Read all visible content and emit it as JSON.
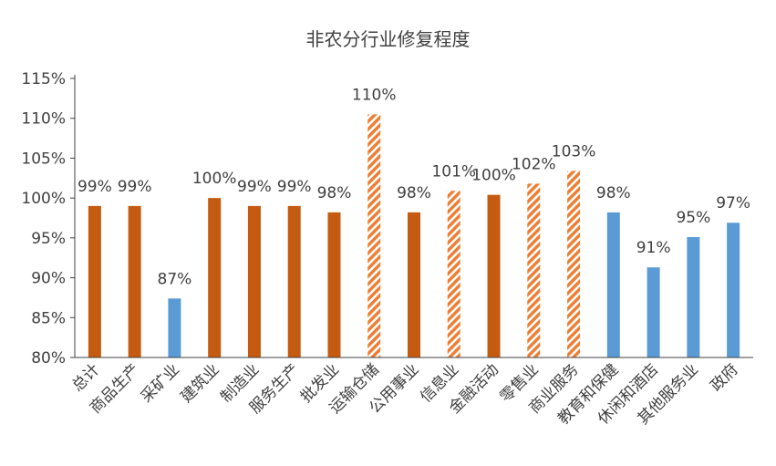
{
  "chart_data": {
    "type": "bar",
    "title": "非农分行业修复程度",
    "categories": [
      "总计",
      "商品生产",
      "采矿业",
      "建筑业",
      "制造业",
      "服务生产",
      "批发业",
      "运输仓储",
      "公用事业",
      "信息业",
      "金融活动",
      "零售业",
      "商业服务",
      "教育和保健",
      "休闲和酒店",
      "其他服务业",
      "政府"
    ],
    "values": [
      99.0,
      99.0,
      87.4,
      100.0,
      99.0,
      99.0,
      98.2,
      110.5,
      98.2,
      100.9,
      100.4,
      101.8,
      103.4,
      98.2,
      91.3,
      95.1,
      96.9
    ],
    "labels": [
      "99%",
      "99%",
      "87%",
      "100%",
      "99%",
      "99%",
      "98%",
      "110%",
      "98%",
      "101%",
      "100%",
      "102%",
      "103%",
      "98%",
      "91%",
      "95%",
      "97%"
    ],
    "styles": [
      "solid-orange",
      "solid-orange",
      "solid-blue",
      "solid-orange",
      "solid-orange",
      "solid-orange",
      "solid-orange",
      "hatched-orange",
      "solid-orange",
      "hatched-orange",
      "solid-orange",
      "hatched-orange",
      "hatched-orange",
      "solid-blue",
      "solid-blue",
      "solid-blue",
      "solid-blue"
    ],
    "ylim": [
      80,
      115
    ],
    "yticks": [
      "80%",
      "85%",
      "90%",
      "95%",
      "100%",
      "105%",
      "110%",
      "115%"
    ],
    "grid": false,
    "legend": "none",
    "colors": {
      "orange": "#C55A11",
      "blue": "#5B9BD5",
      "hatch": "#ED7D31",
      "axis": "#404040"
    }
  }
}
